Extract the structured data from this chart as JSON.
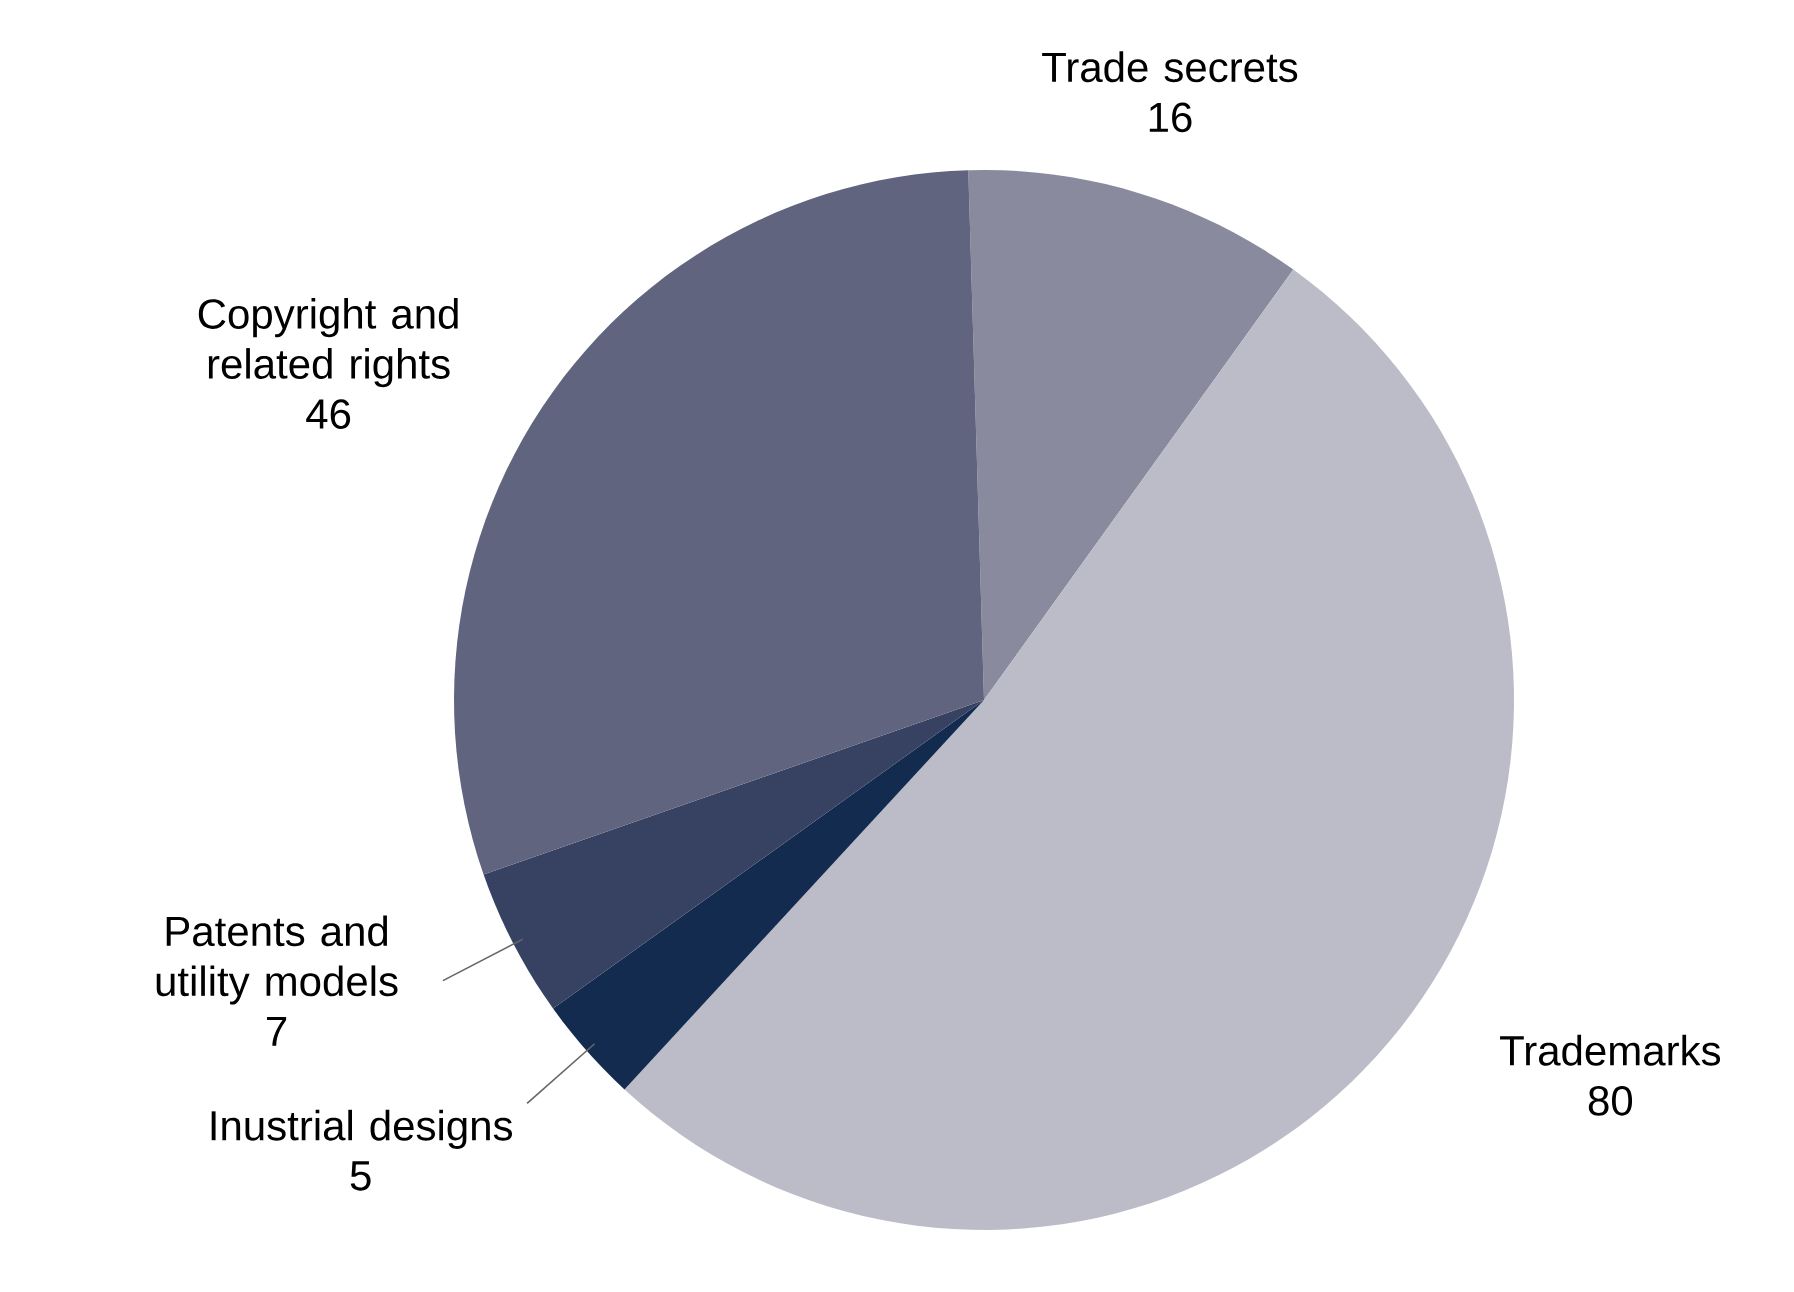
{
  "chart_data": {
    "type": "pie",
    "categories": [
      "Trade secrets",
      "Trademarks",
      "Inustrial designs",
      "Patents and utility models",
      "Copyright and related rights"
    ],
    "values": [
      16,
      80,
      5,
      7,
      46
    ],
    "colors": [
      "#8a8a9e",
      "#bcbcc8",
      "#142b50",
      "#374263",
      "#60647e"
    ],
    "data_labels": true
  }
}
